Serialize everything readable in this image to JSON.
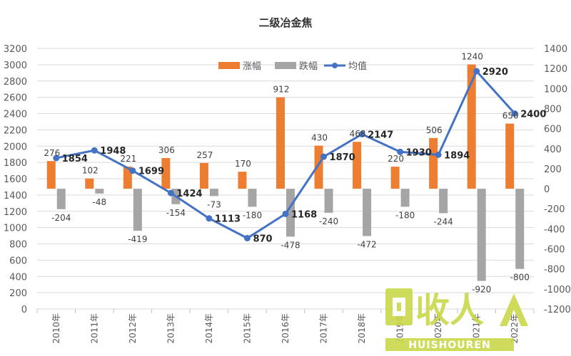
{
  "chart_data": {
    "type": "bar+line",
    "title": "二级冶金焦",
    "categories": [
      "2010年",
      "2011年",
      "2012年",
      "2013年",
      "2014年",
      "2015年",
      "2016年",
      "2017年",
      "2018年",
      "2019年",
      "2020年",
      "2021年",
      "2022年"
    ],
    "series": [
      {
        "name": "涨幅",
        "type": "bar",
        "axis": "right",
        "color": "#ED7D31",
        "values": [
          276,
          102,
          221,
          306,
          257,
          170,
          912,
          430,
          468,
          220,
          506,
          1240,
          650
        ]
      },
      {
        "name": "跌幅",
        "type": "bar",
        "axis": "right",
        "color": "#A5A5A5",
        "values": [
          -204,
          -48,
          -419,
          -154,
          -73,
          -180,
          -478,
          -240,
          -472,
          -180,
          -244,
          -920,
          -800
        ]
      },
      {
        "name": "均值",
        "type": "line",
        "axis": "left",
        "color": "#4472C4",
        "values": [
          1854,
          1948,
          1699,
          1424,
          1113,
          870,
          1168,
          1870,
          2147,
          1930,
          1894,
          2920,
          2400
        ]
      }
    ],
    "left_axis": {
      "min": 0,
      "max": 3200,
      "step": 200
    },
    "right_axis": {
      "min": -1200,
      "max": 1400,
      "step": 200
    },
    "legend_position": "top",
    "grid": true
  },
  "watermark": {
    "text_big": "回收人",
    "text_small": "HUISHOUREN"
  }
}
